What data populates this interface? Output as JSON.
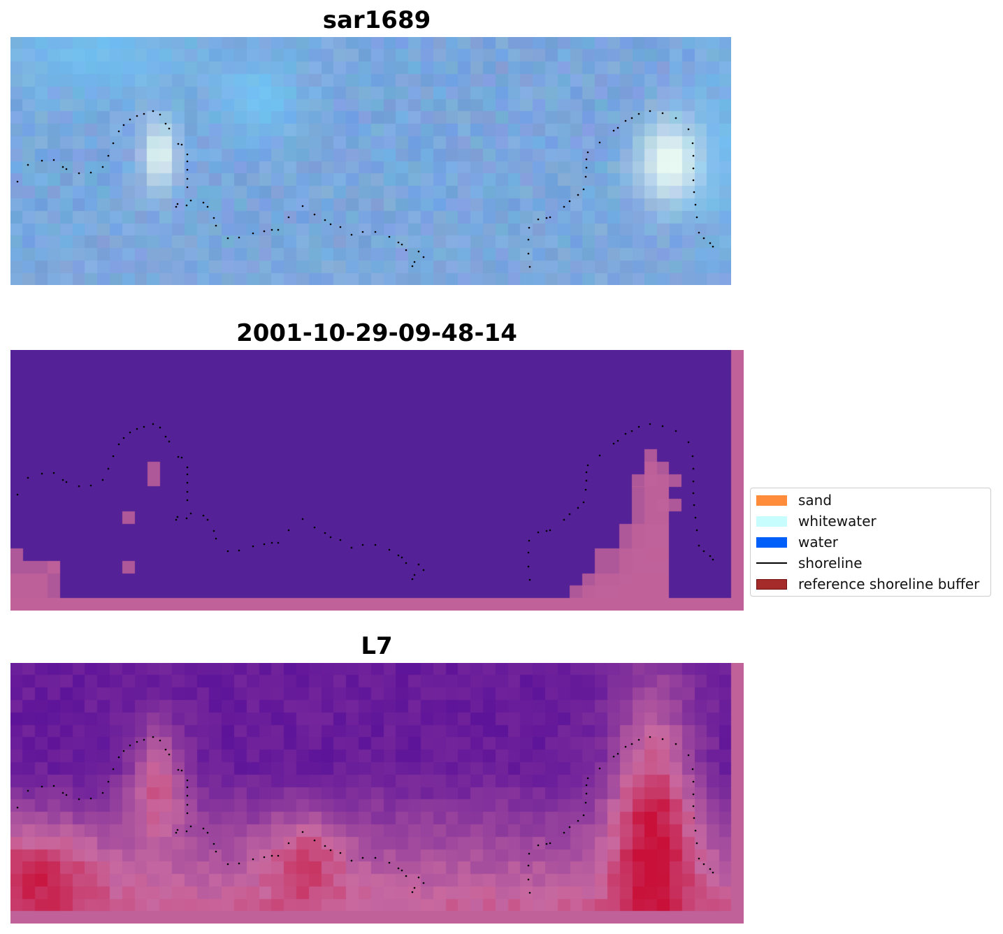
{
  "panels": [
    {
      "title": "sar1689",
      "kind": "rgb"
    },
    {
      "title": "2001-10-29-09-48-14",
      "kind": "classification"
    },
    {
      "title": "L7",
      "kind": "mndwi"
    }
  ],
  "legend": {
    "items": [
      {
        "label": "sand",
        "color": "#ff8c3a",
        "type": "patch"
      },
      {
        "label": "whitewater",
        "color": "#c8fdfd",
        "type": "patch"
      },
      {
        "label": "water",
        "color": "#005ff8",
        "type": "patch"
      },
      {
        "label": "shoreline",
        "color": "#000000",
        "type": "line"
      },
      {
        "label": "reference shoreline buffer",
        "color": "#a52a2a",
        "type": "patch"
      }
    ]
  },
  "colors": {
    "water_base": "#7aa7dd",
    "class_background": "#542196",
    "buffer_strip": "#c0619a",
    "index_low": "#5a1199",
    "index_high": "#c81038"
  }
}
